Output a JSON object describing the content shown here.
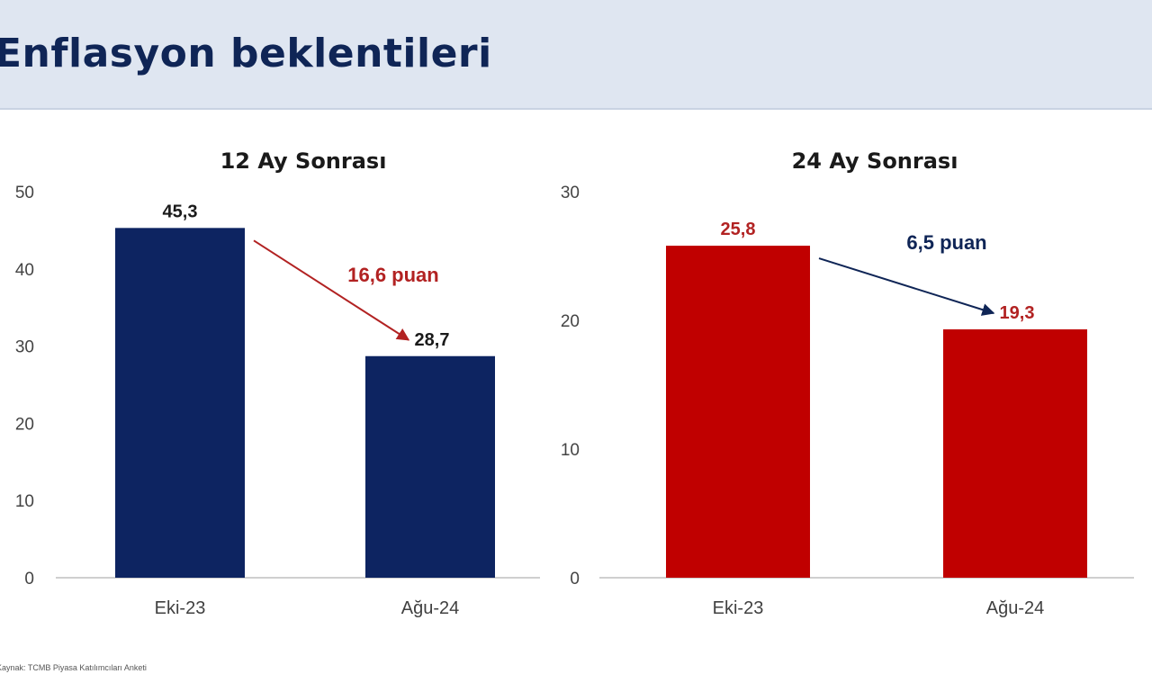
{
  "page": {
    "title": "Enflasyon beklentileri",
    "source": "Kaynak: TCMB Piyasa Katılımcıları Anketi"
  },
  "chart_data": [
    {
      "type": "bar",
      "title": "12 Ay Sonrası",
      "categories": [
        "Eki-23",
        "Ağu-24"
      ],
      "values": [
        45.3,
        28.7
      ],
      "value_labels": [
        "45,3",
        "28,7"
      ],
      "ylim": [
        0,
        50
      ],
      "yticks": [
        0,
        10,
        20,
        30,
        40,
        50
      ],
      "color": "#0d2461",
      "annotation": {
        "text": "16,6 puan",
        "color": "#b22222"
      },
      "arrow_color": "#b22222",
      "value_label_colors": [
        "#1a1a1a",
        "#1a1a1a"
      ],
      "grid": false
    },
    {
      "type": "bar",
      "title": "24 Ay Sonrası",
      "categories": [
        "Eki-23",
        "Ağu-24"
      ],
      "values": [
        25.8,
        19.3
      ],
      "value_labels": [
        "25,8",
        "19,3"
      ],
      "ylim": [
        0,
        30
      ],
      "yticks": [
        0,
        10,
        20,
        30
      ],
      "color": "#c00000",
      "annotation": {
        "text": "6,5 puan",
        "color": "#0f2556"
      },
      "arrow_color": "#0f2556",
      "value_label_colors": [
        "#b22222",
        "#b22222"
      ],
      "grid": false
    }
  ]
}
